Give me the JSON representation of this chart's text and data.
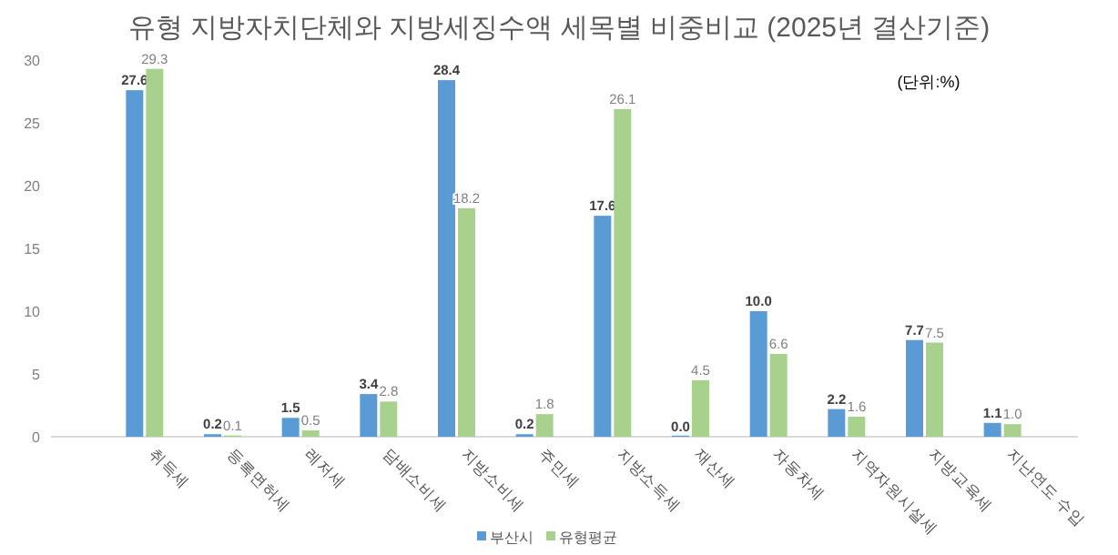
{
  "chart_data": {
    "type": "bar",
    "title": "유형 지방자치단체와 지방세징수액 세목별 비중비교 (2025년 결산기준)",
    "annotations": [
      "(단위:%)"
    ],
    "categories": [
      "취득세",
      "등록면허세",
      "레저세",
      "담배소비세",
      "지방소비세",
      "주민세",
      "지방소득세",
      "재산세",
      "자동차세",
      "지역자원시설세",
      "지방교육세",
      "지난연도 수입"
    ],
    "series": [
      {
        "name": "부산시",
        "color": "#5b9bd5",
        "values": [
          27.6,
          0.2,
          1.5,
          3.4,
          28.4,
          0.2,
          17.6,
          0.0,
          10.0,
          2.2,
          7.7,
          1.1
        ],
        "value_labels": [
          "27.6",
          "0.2",
          "1.5",
          "3.4",
          "28.4",
          "0.2",
          "17.6",
          "0.0",
          "10.0",
          "2.2",
          "7.7",
          "1.1"
        ]
      },
      {
        "name": "유형평균",
        "color": "#a9d18e",
        "values": [
          29.3,
          0.1,
          0.5,
          2.8,
          18.2,
          1.8,
          26.1,
          4.5,
          6.6,
          1.6,
          7.5,
          1.0
        ],
        "value_labels": [
          "29.3",
          "0.1",
          "0.5",
          "2.8",
          "18.2",
          "1.8",
          "26.1",
          "4.5",
          "6.6",
          "1.6",
          "7.5",
          "1.0"
        ]
      }
    ],
    "ylim": [
      0,
      30
    ],
    "yticks": [
      0,
      5,
      10,
      15,
      20,
      25,
      30
    ],
    "legend": "bottom",
    "grid": false
  }
}
